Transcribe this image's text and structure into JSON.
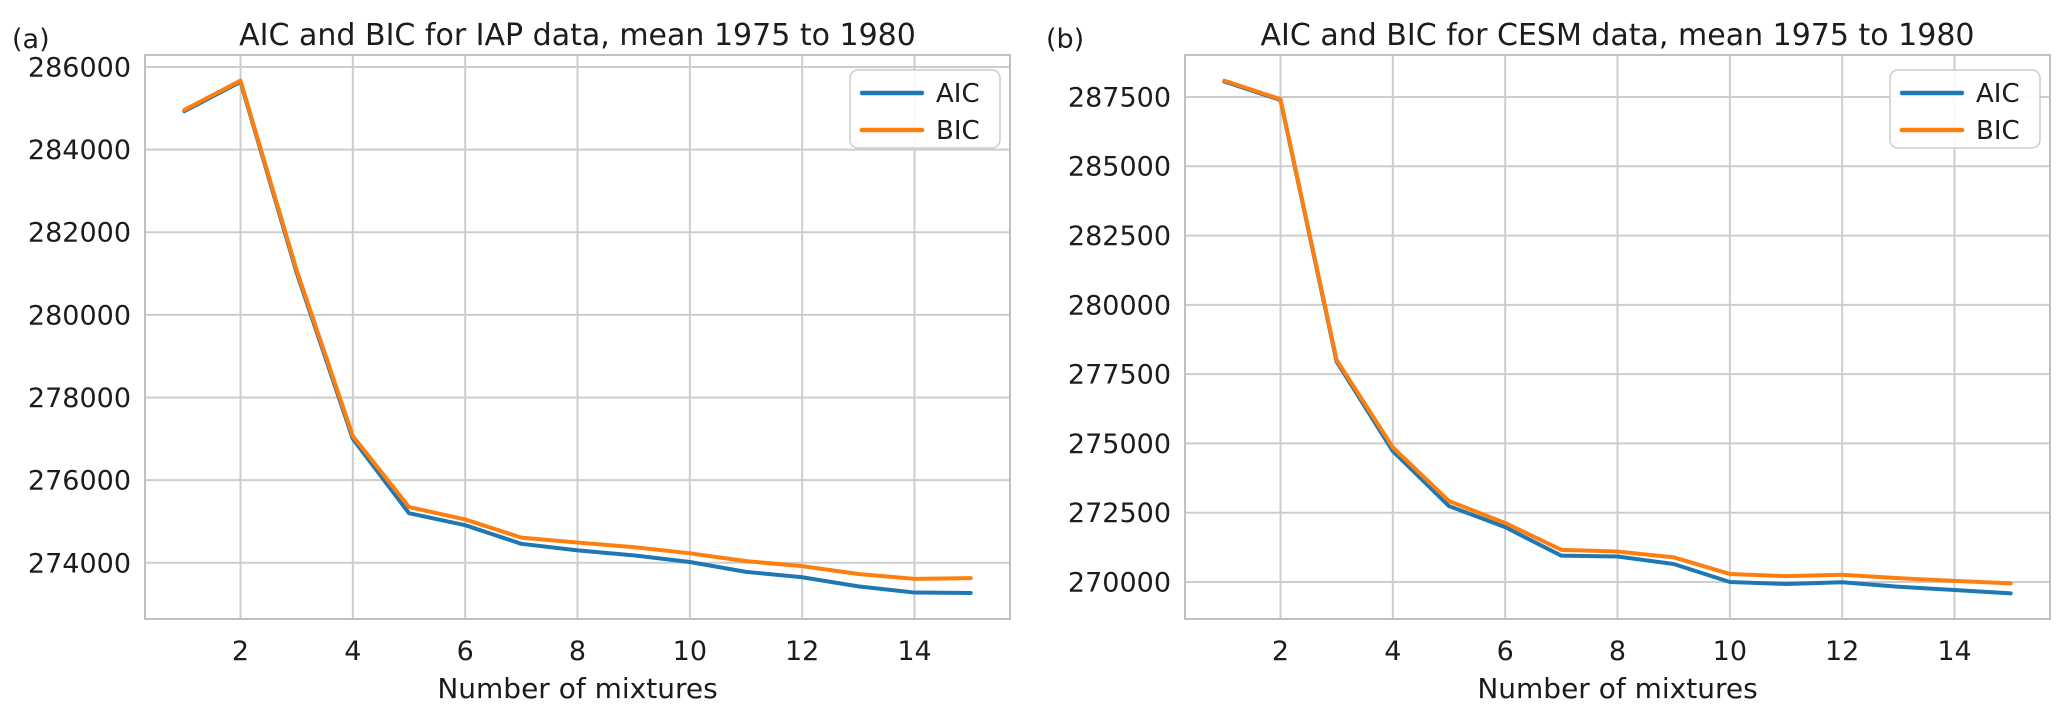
{
  "figure": {
    "background": "#ffffff",
    "grid_color": "#cdcdcd",
    "spine_color": "#c0c0c0",
    "text_color": "#1c1c1c",
    "series_colors": {
      "AIC": "#1f77b4",
      "BIC": "#ff7f0e"
    }
  },
  "chart_data": [
    {
      "type": "line",
      "panel_label": "(a)",
      "title": "AIC and BIC for IAP data, mean 1975 to 1980",
      "xlabel": "Number of mixtures",
      "ylabel": "",
      "grid": true,
      "legend_position": "upper right",
      "x": [
        1,
        2,
        3,
        4,
        5,
        6,
        7,
        8,
        9,
        10,
        11,
        12,
        13,
        14,
        15
      ],
      "series": [
        {
          "name": "AIC",
          "color": "#1f77b4",
          "values": [
            284930,
            285640,
            281020,
            277000,
            275200,
            274910,
            274460,
            274300,
            274180,
            274020,
            273780,
            273650,
            273430,
            273280,
            273270
          ]
        },
        {
          "name": "BIC",
          "color": "#ff7f0e",
          "values": [
            284960,
            285670,
            281080,
            277070,
            275350,
            275050,
            274610,
            274490,
            274380,
            274230,
            274040,
            273920,
            273730,
            273610,
            273630
          ]
        }
      ],
      "xticks": [
        2,
        4,
        6,
        8,
        10,
        12,
        14
      ],
      "yticks": [
        274000,
        276000,
        278000,
        280000,
        282000,
        284000,
        286000
      ],
      "xlim": [
        0.3,
        15.7
      ],
      "ylim": [
        272640,
        286290
      ]
    },
    {
      "type": "line",
      "panel_label": "(b)",
      "title": "AIC and BIC for CESM data, mean 1975 to 1980",
      "xlabel": "Number of mixtures",
      "ylabel": "",
      "grid": true,
      "legend_position": "upper right",
      "x": [
        1,
        2,
        3,
        4,
        5,
        6,
        7,
        8,
        9,
        10,
        11,
        12,
        13,
        14,
        15
      ],
      "series": [
        {
          "name": "AIC",
          "color": "#1f77b4",
          "values": [
            288060,
            287390,
            277950,
            274720,
            272740,
            271980,
            270950,
            270920,
            270650,
            270000,
            269930,
            269990,
            269830,
            269710,
            269590
          ]
        },
        {
          "name": "BIC",
          "color": "#ff7f0e",
          "values": [
            288090,
            287420,
            278010,
            274860,
            272920,
            272130,
            271160,
            271100,
            270890,
            270290,
            270210,
            270260,
            270140,
            270040,
            269950
          ]
        }
      ],
      "xticks": [
        2,
        4,
        6,
        8,
        10,
        12,
        14
      ],
      "yticks": [
        270000,
        272500,
        275000,
        277500,
        280000,
        282500,
        285000,
        287500
      ],
      "xlim": [
        0.3,
        15.7
      ],
      "ylim": [
        268665,
        289015
      ]
    }
  ]
}
